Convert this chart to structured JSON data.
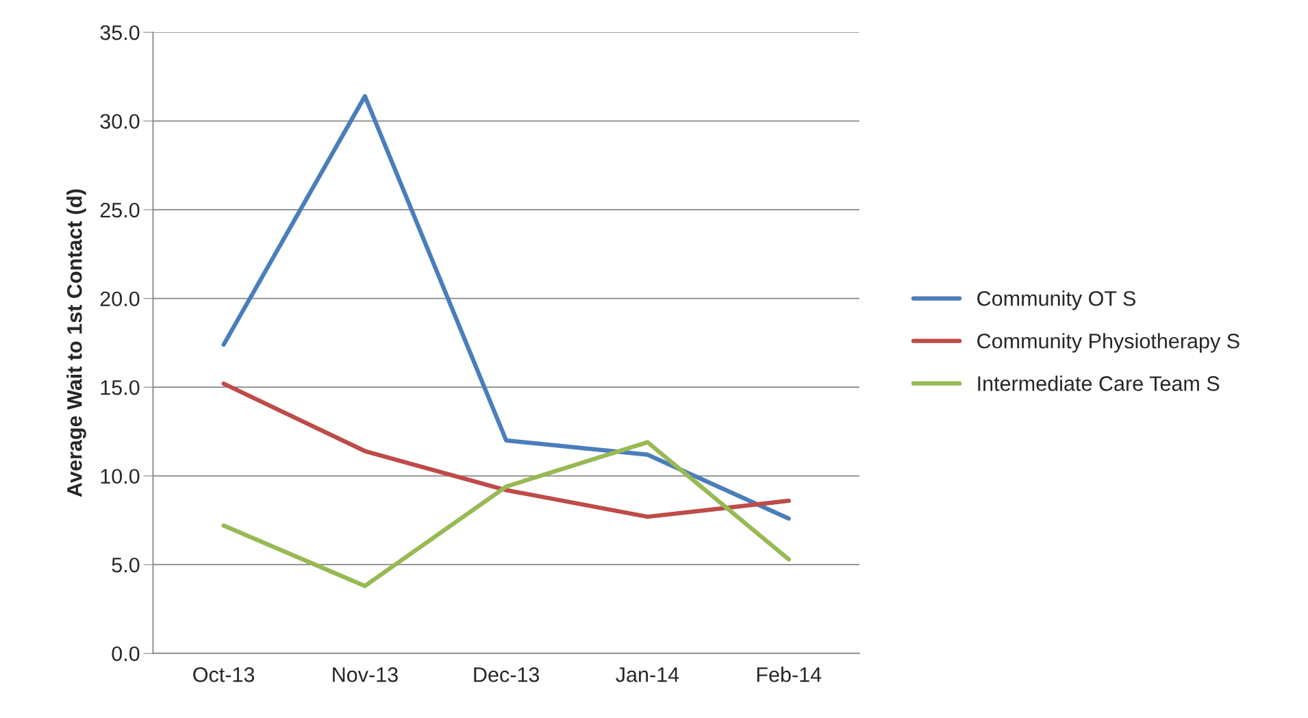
{
  "chart_data": {
    "type": "line",
    "ylabel": "Average Wait to 1st Contact (d)",
    "categories": [
      "Oct-13",
      "Nov-13",
      "Dec-13",
      "Jan-14",
      "Feb-14"
    ],
    "series": [
      {
        "name": "Community OT S",
        "color": "#4a7ebb",
        "values": [
          17.4,
          31.4,
          12.0,
          11.2,
          7.6
        ]
      },
      {
        "name": "Community Physiotherapy S",
        "color": "#be4b48",
        "values": [
          15.2,
          11.4,
          9.2,
          7.7,
          8.6
        ]
      },
      {
        "name": "Intermediate Care Team S",
        "color": "#98b954",
        "values": [
          7.2,
          3.8,
          9.4,
          11.9,
          5.3
        ]
      }
    ],
    "ylim": [
      0,
      35
    ],
    "yticks": [
      {
        "value": 0,
        "label": "0.0"
      },
      {
        "value": 5,
        "label": "5.0"
      },
      {
        "value": 10,
        "label": "10.0"
      },
      {
        "value": 15,
        "label": "15.0"
      },
      {
        "value": 20,
        "label": "20.0"
      },
      {
        "value": 25,
        "label": "25.0"
      },
      {
        "value": 30,
        "label": "30.0"
      },
      {
        "value": 35,
        "label": "35.0"
      }
    ],
    "grid": "y",
    "legend": "right",
    "marker": "none",
    "line_style": "solid"
  }
}
